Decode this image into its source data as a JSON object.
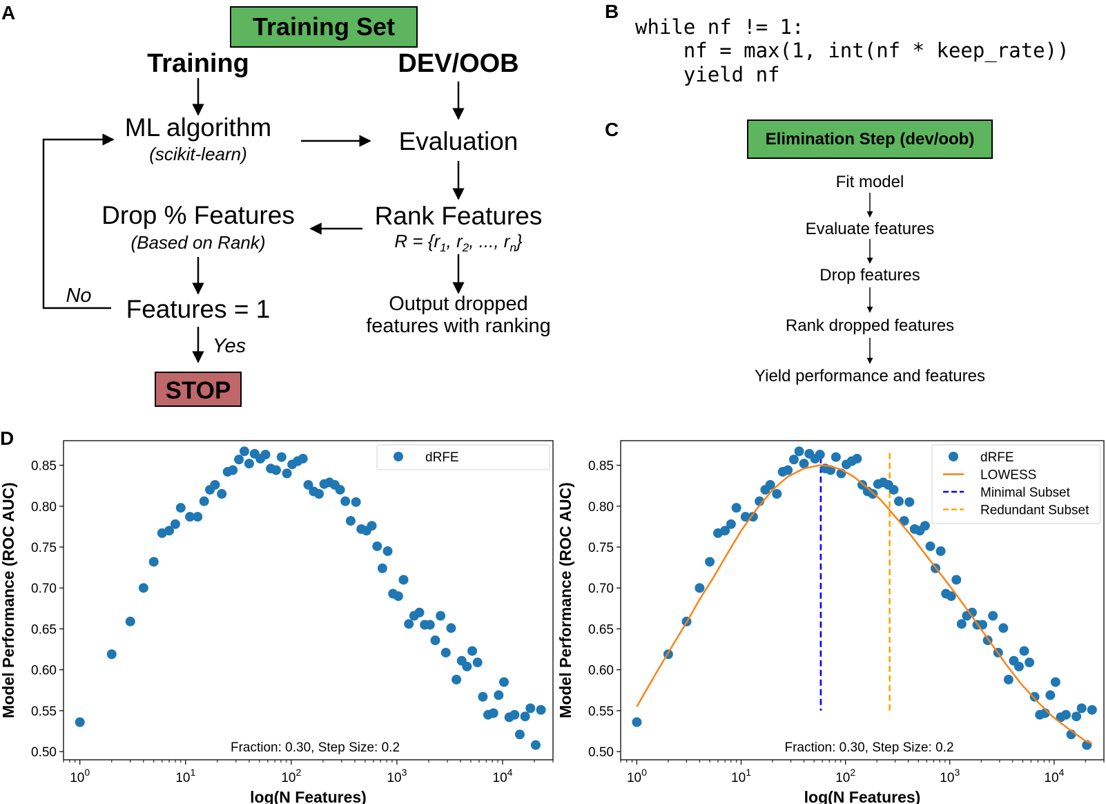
{
  "panels": {
    "a": {
      "letter": "A",
      "training_set": "Training Set",
      "col_training": "Training",
      "col_dev": "DEV/OOB",
      "ml_algorithm": "ML algorithm",
      "ml_sub": "(scikit-learn)",
      "evaluation": "Evaluation",
      "rank_features": "Rank Features",
      "rank_formula": {
        "r": "R = {r",
        "s1": "1",
        "c1": ", r",
        "s2": "2",
        "c2": ", ..., r",
        "sn": "n",
        "end": "}"
      },
      "drop_features": "Drop % Features",
      "drop_sub": "(Based on Rank)",
      "features_eq": "Features = 1",
      "no": "No",
      "yes": "Yes",
      "stop": "STOP",
      "output_line1": "Output dropped",
      "output_line2": "features with ranking"
    },
    "b": {
      "letter": "B",
      "code": [
        "while nf != 1:",
        "    nf = max(1, int(nf * keep_rate))",
        "    yield nf"
      ]
    },
    "c": {
      "letter": "C",
      "title": "Elimination Step (dev/oob)",
      "steps": [
        "Fit model",
        "Evaluate features",
        "Drop features",
        "Rank dropped features",
        "Yield performance and features"
      ]
    },
    "d": {
      "letter": "D"
    }
  },
  "colors": {
    "green_box": "#5db55d",
    "red_box": "#c0676a",
    "points": "#1f77b4",
    "lowess": "#ff7f0e",
    "minimal": "#0000ff",
    "redundant": "#ffa500"
  },
  "chart_data": [
    {
      "type": "scatter",
      "xscale": "log",
      "xlabel": "log(N Features)",
      "ylabel": "Model Performance (ROC AUC)",
      "xlim": [
        0.7,
        30000
      ],
      "ylim": [
        0.49,
        0.88
      ],
      "xticks": [
        {
          "pow": "0"
        },
        {
          "pow": "1"
        },
        {
          "pow": "2"
        },
        {
          "pow": "3"
        },
        {
          "pow": "4"
        }
      ],
      "yticks": [
        "0.50",
        "0.55",
        "0.60",
        "0.65",
        "0.70",
        "0.75",
        "0.80",
        "0.85"
      ],
      "annotation": "Fraction: 0.30, Step Size: 0.2",
      "legend": [
        {
          "label": "dRFE",
          "kind": "marker"
        }
      ],
      "legend_position": "top-right",
      "series": [
        {
          "name": "dRFE",
          "points": [
            [
              1,
              0.536
            ],
            [
              2,
              0.619
            ],
            [
              3,
              0.659
            ],
            [
              4,
              0.7
            ],
            [
              5,
              0.732
            ],
            [
              6,
              0.767
            ],
            [
              7,
              0.77
            ],
            [
              8,
              0.778
            ],
            [
              9,
              0.798
            ],
            [
              11,
              0.787
            ],
            [
              13,
              0.787
            ],
            [
              15,
              0.806
            ],
            [
              17,
              0.82
            ],
            [
              19,
              0.826
            ],
            [
              22,
              0.815
            ],
            [
              25,
              0.842
            ],
            [
              28,
              0.844
            ],
            [
              32,
              0.857
            ],
            [
              36,
              0.867
            ],
            [
              40,
              0.852
            ],
            [
              45,
              0.864
            ],
            [
              51,
              0.858
            ],
            [
              57,
              0.863
            ],
            [
              64,
              0.846
            ],
            [
              72,
              0.844
            ],
            [
              81,
              0.86
            ],
            [
              91,
              0.84
            ],
            [
              102,
              0.851
            ],
            [
              115,
              0.855
            ],
            [
              129,
              0.858
            ],
            [
              145,
              0.826
            ],
            [
              163,
              0.818
            ],
            [
              183,
              0.815
            ],
            [
              205,
              0.827
            ],
            [
              230,
              0.829
            ],
            [
              258,
              0.826
            ],
            [
              290,
              0.82
            ],
            [
              325,
              0.806
            ],
            [
              365,
              0.782
            ],
            [
              410,
              0.805
            ],
            [
              460,
              0.772
            ],
            [
              516,
              0.77
            ],
            [
              579,
              0.776
            ],
            [
              650,
              0.751
            ],
            [
              729,
              0.724
            ],
            [
              818,
              0.745
            ],
            [
              918,
              0.693
            ],
            [
              1030,
              0.69
            ],
            [
              1156,
              0.71
            ],
            [
              1297,
              0.656
            ],
            [
              1455,
              0.666
            ],
            [
              1633,
              0.67
            ],
            [
              1832,
              0.655
            ],
            [
              2056,
              0.655
            ],
            [
              2307,
              0.636
            ],
            [
              2588,
              0.666
            ],
            [
              2904,
              0.621
            ],
            [
              3259,
              0.651
            ],
            [
              3656,
              0.588
            ],
            [
              4103,
              0.611
            ],
            [
              4603,
              0.604
            ],
            [
              5165,
              0.623
            ],
            [
              5795,
              0.609
            ],
            [
              6502,
              0.567
            ],
            [
              7296,
              0.545
            ],
            [
              8187,
              0.547
            ],
            [
              9186,
              0.569
            ],
            [
              10307,
              0.585
            ],
            [
              11565,
              0.542
            ],
            [
              12977,
              0.545
            ],
            [
              14560,
              0.521
            ],
            [
              16338,
              0.543
            ],
            [
              18332,
              0.553
            ],
            [
              20570,
              0.508
            ],
            [
              23080,
              0.551
            ]
          ]
        }
      ]
    },
    {
      "type": "scatter",
      "xscale": "log",
      "xlabel": "log(N Features)",
      "ylabel": "Model Performance (ROC AUC)",
      "xlim": [
        0.7,
        30000
      ],
      "ylim": [
        0.49,
        0.88
      ],
      "xticks": [
        {
          "pow": "0"
        },
        {
          "pow": "1"
        },
        {
          "pow": "2"
        },
        {
          "pow": "3"
        },
        {
          "pow": "4"
        }
      ],
      "yticks": [
        "0.50",
        "0.55",
        "0.60",
        "0.65",
        "0.70",
        "0.75",
        "0.80",
        "0.85"
      ],
      "annotation": "Fraction: 0.30, Step Size: 0.2",
      "legend": [
        {
          "label": "dRFE",
          "kind": "marker"
        },
        {
          "label": "LOWESS",
          "kind": "line"
        },
        {
          "label": "Minimal Subset",
          "kind": "dash-blue"
        },
        {
          "label": "Redundant Subset",
          "kind": "dash-orange"
        }
      ],
      "legend_position": "top-right",
      "series": [
        {
          "name": "dRFE",
          "points": [
            [
              1,
              0.536
            ],
            [
              2,
              0.619
            ],
            [
              3,
              0.659
            ],
            [
              4,
              0.7
            ],
            [
              5,
              0.732
            ],
            [
              6,
              0.767
            ],
            [
              7,
              0.77
            ],
            [
              8,
              0.778
            ],
            [
              9,
              0.798
            ],
            [
              11,
              0.787
            ],
            [
              13,
              0.787
            ],
            [
              15,
              0.806
            ],
            [
              17,
              0.82
            ],
            [
              19,
              0.826
            ],
            [
              22,
              0.815
            ],
            [
              25,
              0.842
            ],
            [
              28,
              0.844
            ],
            [
              32,
              0.857
            ],
            [
              36,
              0.867
            ],
            [
              40,
              0.852
            ],
            [
              45,
              0.864
            ],
            [
              51,
              0.858
            ],
            [
              57,
              0.863
            ],
            [
              64,
              0.846
            ],
            [
              72,
              0.844
            ],
            [
              81,
              0.86
            ],
            [
              91,
              0.84
            ],
            [
              102,
              0.851
            ],
            [
              115,
              0.855
            ],
            [
              129,
              0.858
            ],
            [
              145,
              0.826
            ],
            [
              163,
              0.818
            ],
            [
              183,
              0.815
            ],
            [
              205,
              0.827
            ],
            [
              230,
              0.829
            ],
            [
              258,
              0.826
            ],
            [
              290,
              0.82
            ],
            [
              325,
              0.806
            ],
            [
              365,
              0.782
            ],
            [
              410,
              0.805
            ],
            [
              460,
              0.772
            ],
            [
              516,
              0.77
            ],
            [
              579,
              0.776
            ],
            [
              650,
              0.751
            ],
            [
              729,
              0.724
            ],
            [
              818,
              0.745
            ],
            [
              918,
              0.693
            ],
            [
              1030,
              0.69
            ],
            [
              1156,
              0.71
            ],
            [
              1297,
              0.656
            ],
            [
              1455,
              0.666
            ],
            [
              1633,
              0.67
            ],
            [
              1832,
              0.655
            ],
            [
              2056,
              0.655
            ],
            [
              2307,
              0.636
            ],
            [
              2588,
              0.666
            ],
            [
              2904,
              0.621
            ],
            [
              3259,
              0.651
            ],
            [
              3656,
              0.588
            ],
            [
              4103,
              0.611
            ],
            [
              4603,
              0.604
            ],
            [
              5165,
              0.623
            ],
            [
              5795,
              0.609
            ],
            [
              6502,
              0.567
            ],
            [
              7296,
              0.545
            ],
            [
              8187,
              0.547
            ],
            [
              9186,
              0.569
            ],
            [
              10307,
              0.585
            ],
            [
              11565,
              0.542
            ],
            [
              12977,
              0.545
            ],
            [
              14560,
              0.521
            ],
            [
              16338,
              0.543
            ],
            [
              18332,
              0.553
            ],
            [
              20570,
              0.508
            ],
            [
              23080,
              0.551
            ]
          ]
        },
        {
          "name": "LOWESS",
          "points": [
            [
              1,
              0.555
            ],
            [
              1.5,
              0.594
            ],
            [
              2,
              0.621
            ],
            [
              3,
              0.658
            ],
            [
              4,
              0.686
            ],
            [
              5.5,
              0.714
            ],
            [
              7,
              0.737
            ],
            [
              10,
              0.77
            ],
            [
              14,
              0.796
            ],
            [
              20,
              0.82
            ],
            [
              28,
              0.836
            ],
            [
              40,
              0.846
            ],
            [
              57,
              0.85
            ],
            [
              70,
              0.849
            ],
            [
              90,
              0.845
            ],
            [
              120,
              0.836
            ],
            [
              160,
              0.823
            ],
            [
              220,
              0.807
            ],
            [
              300,
              0.787
            ],
            [
              420,
              0.765
            ],
            [
              600,
              0.739
            ],
            [
              850,
              0.714
            ],
            [
              1200,
              0.689
            ],
            [
              1700,
              0.662
            ],
            [
              2400,
              0.635
            ],
            [
              3400,
              0.608
            ],
            [
              4800,
              0.583
            ],
            [
              6800,
              0.562
            ],
            [
              9600,
              0.543
            ],
            [
              14000,
              0.527
            ],
            [
              20000,
              0.513
            ],
            [
              23080,
              0.51
            ]
          ]
        }
      ],
      "vlines": [
        {
          "name": "Minimal Subset",
          "x": 58,
          "y_from": 0.55,
          "y_to": 0.86
        },
        {
          "name": "Redundant Subset",
          "x": 265,
          "y_from": 0.55,
          "y_to": 0.865
        }
      ]
    }
  ]
}
